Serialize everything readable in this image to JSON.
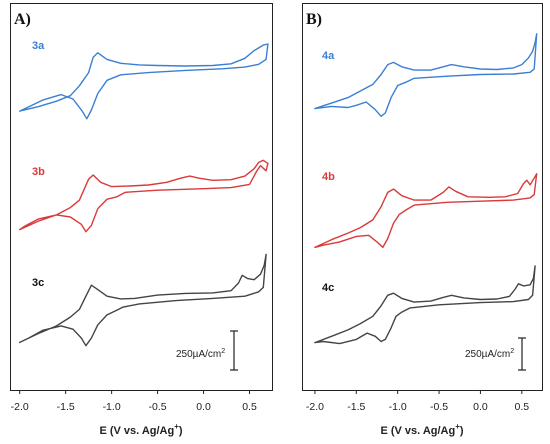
{
  "colors": {
    "blue": "#3b7fd4",
    "red": "#d93a3a",
    "gray": "#444444",
    "frame": "#222222"
  },
  "chart_data": [
    {
      "type": "line",
      "panel_label": "A)",
      "xlabel": "E (V vs. Ag/Ag",
      "xlabel_sup": "+",
      "xlabel_end": ")",
      "xlim": [
        -2.1,
        0.75
      ],
      "x_ticks": [
        "-2.0",
        "-1.5",
        "-1.0",
        "-0.5",
        "0.0",
        "0.5"
      ],
      "scale_bar_label": "250µA/cm",
      "scale_bar_sup": "2",
      "y_scale_note": "curves vertically offset; scale bar = 250 µA/cm²",
      "series": [
        {
          "name": "3a",
          "color": "#3b7fd4",
          "forward": [
            [
              -2.0,
              -3.1
            ],
            [
              -1.8,
              -2.7
            ],
            [
              -1.6,
              -2.2
            ],
            [
              -1.45,
              -1.7
            ],
            [
              -1.35,
              -0.8
            ],
            [
              -1.25,
              0.4
            ],
            [
              -1.2,
              1.8
            ],
            [
              -1.15,
              2.2
            ],
            [
              -1.05,
              1.6
            ],
            [
              -0.9,
              1.25
            ],
            [
              -0.7,
              1.1
            ],
            [
              -0.5,
              1.05
            ],
            [
              -0.2,
              1.0
            ],
            [
              0.1,
              1.05
            ],
            [
              0.3,
              1.2
            ],
            [
              0.45,
              1.7
            ],
            [
              0.55,
              2.4
            ],
            [
              0.65,
              2.9
            ],
            [
              0.7,
              3.0
            ]
          ],
          "reverse": [
            [
              0.7,
              3.0
            ],
            [
              0.68,
              1.6
            ],
            [
              0.6,
              1.15
            ],
            [
              0.45,
              0.9
            ],
            [
              0.2,
              0.75
            ],
            [
              -0.2,
              0.6
            ],
            [
              -0.6,
              0.4
            ],
            [
              -0.9,
              0.2
            ],
            [
              -1.05,
              -0.3
            ],
            [
              -1.15,
              -1.5
            ],
            [
              -1.22,
              -3.0
            ],
            [
              -1.27,
              -3.8
            ],
            [
              -1.32,
              -3.1
            ],
            [
              -1.42,
              -2.0
            ],
            [
              -1.55,
              -1.6
            ],
            [
              -1.75,
              -2.1
            ],
            [
              -1.9,
              -2.7
            ],
            [
              -2.0,
              -3.1
            ]
          ]
        },
        {
          "name": "3b",
          "color": "#d93a3a",
          "forward": [
            [
              -2.0,
              -3.2
            ],
            [
              -1.8,
              -2.4
            ],
            [
              -1.6,
              -1.8
            ],
            [
              -1.45,
              -1.1
            ],
            [
              -1.35,
              -0.4
            ],
            [
              -1.3,
              0.6
            ],
            [
              -1.25,
              1.6
            ],
            [
              -1.2,
              2.0
            ],
            [
              -1.12,
              1.3
            ],
            [
              -1.0,
              0.9
            ],
            [
              -0.8,
              0.95
            ],
            [
              -0.6,
              1.05
            ],
            [
              -0.4,
              1.3
            ],
            [
              -0.25,
              1.7
            ],
            [
              -0.15,
              1.9
            ],
            [
              -0.05,
              1.7
            ],
            [
              0.1,
              1.5
            ],
            [
              0.3,
              1.55
            ],
            [
              0.45,
              1.9
            ],
            [
              0.55,
              2.6
            ],
            [
              0.6,
              3.2
            ],
            [
              0.65,
              3.4
            ],
            [
              0.7,
              3.1
            ]
          ],
          "reverse": [
            [
              0.7,
              3.1
            ],
            [
              0.68,
              2.4
            ],
            [
              0.62,
              2.9
            ],
            [
              0.58,
              2.4
            ],
            [
              0.5,
              1.1
            ],
            [
              0.3,
              0.8
            ],
            [
              0.0,
              0.7
            ],
            [
              -0.5,
              0.55
            ],
            [
              -0.85,
              0.35
            ],
            [
              -0.95,
              -0.1
            ],
            [
              -1.05,
              -0.3
            ],
            [
              -1.15,
              -1.2
            ],
            [
              -1.22,
              -2.8
            ],
            [
              -1.28,
              -3.4
            ],
            [
              -1.33,
              -2.7
            ],
            [
              -1.45,
              -2.0
            ],
            [
              -1.6,
              -1.8
            ],
            [
              -1.8,
              -2.2
            ],
            [
              -1.95,
              -2.9
            ],
            [
              -2.0,
              -3.2
            ]
          ]
        },
        {
          "name": "3c",
          "color": "#444444",
          "forward": [
            [
              -2.0,
              -3.4
            ],
            [
              -1.8,
              -2.6
            ],
            [
              -1.6,
              -1.9
            ],
            [
              -1.45,
              -1.1
            ],
            [
              -1.35,
              -0.4
            ],
            [
              -1.28,
              0.8
            ],
            [
              -1.22,
              1.8
            ],
            [
              -1.15,
              1.4
            ],
            [
              -1.05,
              0.8
            ],
            [
              -0.9,
              0.55
            ],
            [
              -0.75,
              0.6
            ],
            [
              -0.5,
              0.9
            ],
            [
              -0.2,
              1.05
            ],
            [
              0.1,
              1.1
            ],
            [
              0.3,
              1.3
            ],
            [
              0.38,
              2.0
            ],
            [
              0.42,
              2.7
            ],
            [
              0.48,
              2.4
            ],
            [
              0.55,
              2.3
            ],
            [
              0.62,
              2.8
            ],
            [
              0.66,
              3.6
            ],
            [
              0.68,
              4.6
            ]
          ],
          "reverse": [
            [
              0.68,
              4.6
            ],
            [
              0.65,
              1.6
            ],
            [
              0.6,
              1.2
            ],
            [
              0.45,
              0.8
            ],
            [
              0.1,
              0.6
            ],
            [
              -0.3,
              0.4
            ],
            [
              -0.7,
              0.1
            ],
            [
              -0.88,
              -0.2
            ],
            [
              -0.95,
              -0.5
            ],
            [
              -1.05,
              -0.9
            ],
            [
              -1.15,
              -1.8
            ],
            [
              -1.22,
              -3.0
            ],
            [
              -1.28,
              -3.7
            ],
            [
              -1.33,
              -3.0
            ],
            [
              -1.42,
              -2.2
            ],
            [
              -1.55,
              -1.9
            ],
            [
              -1.75,
              -2.3
            ],
            [
              -1.9,
              -3.0
            ],
            [
              -2.0,
              -3.4
            ]
          ]
        }
      ]
    },
    {
      "type": "line",
      "panel_label": "B)",
      "xlabel": "E (V vs. Ag/Ag",
      "xlabel_sup": "+",
      "xlabel_end": ")",
      "xlim": [
        -2.15,
        0.75
      ],
      "x_ticks": [
        "-2.0",
        "-1.5",
        "-1.0",
        "-0.5",
        "0.0",
        "0.5"
      ],
      "scale_bar_label": "250µA/cm",
      "scale_bar_sup": "2",
      "y_scale_note": "curves vertically offset; scale bar = 250 µA/cm²",
      "series": [
        {
          "name": "4a",
          "color": "#3b7fd4",
          "forward": [
            [
              -2.0,
              -2.6
            ],
            [
              -1.8,
              -2.1
            ],
            [
              -1.6,
              -1.6
            ],
            [
              -1.45,
              -1.0
            ],
            [
              -1.3,
              -0.4
            ],
            [
              -1.2,
              0.5
            ],
            [
              -1.12,
              1.4
            ],
            [
              -1.05,
              1.6
            ],
            [
              -0.95,
              1.2
            ],
            [
              -0.8,
              0.9
            ],
            [
              -0.6,
              0.9
            ],
            [
              -0.45,
              1.2
            ],
            [
              -0.35,
              1.4
            ],
            [
              -0.2,
              1.2
            ],
            [
              0.0,
              1.0
            ],
            [
              0.2,
              0.95
            ],
            [
              0.4,
              1.1
            ],
            [
              0.5,
              1.4
            ],
            [
              0.58,
              2.0
            ],
            [
              0.63,
              2.6
            ],
            [
              0.66,
              3.4
            ],
            [
              0.68,
              4.2
            ]
          ],
          "reverse": [
            [
              0.68,
              4.2
            ],
            [
              0.65,
              1.0
            ],
            [
              0.6,
              0.7
            ],
            [
              0.4,
              0.55
            ],
            [
              0.0,
              0.5
            ],
            [
              -0.4,
              0.35
            ],
            [
              -0.8,
              0.15
            ],
            [
              -0.9,
              -0.2
            ],
            [
              -1.0,
              -0.5
            ],
            [
              -1.08,
              -1.6
            ],
            [
              -1.15,
              -3.0
            ],
            [
              -1.2,
              -3.3
            ],
            [
              -1.27,
              -2.7
            ],
            [
              -1.38,
              -2.0
            ],
            [
              -1.5,
              -2.3
            ],
            [
              -1.6,
              -2.5
            ],
            [
              -1.8,
              -2.4
            ],
            [
              -2.0,
              -2.6
            ]
          ]
        },
        {
          "name": "4b",
          "color": "#d93a3a",
          "forward": [
            [
              -2.0,
              -3.4
            ],
            [
              -1.8,
              -2.7
            ],
            [
              -1.6,
              -2.1
            ],
            [
              -1.45,
              -1.6
            ],
            [
              -1.3,
              -0.9
            ],
            [
              -1.2,
              0.3
            ],
            [
              -1.12,
              1.6
            ],
            [
              -1.05,
              1.9
            ],
            [
              -0.95,
              1.3
            ],
            [
              -0.8,
              0.9
            ],
            [
              -0.6,
              0.9
            ],
            [
              -0.45,
              1.6
            ],
            [
              -0.38,
              2.1
            ],
            [
              -0.3,
              1.7
            ],
            [
              -0.15,
              1.2
            ],
            [
              0.1,
              1.15
            ],
            [
              0.3,
              1.2
            ],
            [
              0.45,
              1.5
            ],
            [
              0.52,
              2.4
            ],
            [
              0.56,
              2.7
            ],
            [
              0.6,
              2.3
            ],
            [
              0.65,
              2.9
            ],
            [
              0.68,
              3.3
            ]
          ],
          "reverse": [
            [
              0.68,
              3.3
            ],
            [
              0.65,
              1.4
            ],
            [
              0.6,
              1.1
            ],
            [
              0.4,
              0.9
            ],
            [
              0.0,
              0.8
            ],
            [
              -0.4,
              0.7
            ],
            [
              -0.8,
              0.45
            ],
            [
              -0.9,
              0.0
            ],
            [
              -0.98,
              -0.4
            ],
            [
              -1.05,
              -1.2
            ],
            [
              -1.12,
              -2.6
            ],
            [
              -1.18,
              -3.4
            ],
            [
              -1.25,
              -2.9
            ],
            [
              -1.35,
              -2.3
            ],
            [
              -1.5,
              -2.4
            ],
            [
              -1.7,
              -2.9
            ],
            [
              -1.9,
              -3.2
            ],
            [
              -2.0,
              -3.4
            ]
          ]
        },
        {
          "name": "4c",
          "color": "#444444",
          "forward": [
            [
              -2.0,
              -3.1
            ],
            [
              -1.8,
              -2.5
            ],
            [
              -1.6,
              -1.9
            ],
            [
              -1.45,
              -1.3
            ],
            [
              -1.3,
              -0.6
            ],
            [
              -1.2,
              0.4
            ],
            [
              -1.12,
              1.4
            ],
            [
              -1.05,
              1.6
            ],
            [
              -0.95,
              1.1
            ],
            [
              -0.8,
              0.75
            ],
            [
              -0.6,
              0.85
            ],
            [
              -0.45,
              1.2
            ],
            [
              -0.35,
              1.4
            ],
            [
              -0.2,
              1.15
            ],
            [
              0.0,
              1.0
            ],
            [
              0.2,
              1.05
            ],
            [
              0.35,
              1.3
            ],
            [
              0.42,
              2.0
            ],
            [
              0.46,
              2.5
            ],
            [
              0.52,
              2.3
            ],
            [
              0.6,
              2.4
            ],
            [
              0.64,
              3.0
            ],
            [
              0.66,
              4.2
            ]
          ],
          "reverse": [
            [
              0.66,
              4.2
            ],
            [
              0.63,
              1.4
            ],
            [
              0.58,
              1.0
            ],
            [
              0.4,
              0.8
            ],
            [
              0.0,
              0.7
            ],
            [
              -0.5,
              0.5
            ],
            [
              -0.85,
              0.2
            ],
            [
              -0.95,
              -0.2
            ],
            [
              -1.02,
              -0.6
            ],
            [
              -1.08,
              -1.7
            ],
            [
              -1.15,
              -2.8
            ],
            [
              -1.2,
              -3.0
            ],
            [
              -1.27,
              -2.5
            ],
            [
              -1.37,
              -2.2
            ],
            [
              -1.5,
              -2.8
            ],
            [
              -1.7,
              -3.2
            ],
            [
              -1.9,
              -3.0
            ],
            [
              -2.0,
              -3.1
            ]
          ]
        }
      ]
    }
  ]
}
